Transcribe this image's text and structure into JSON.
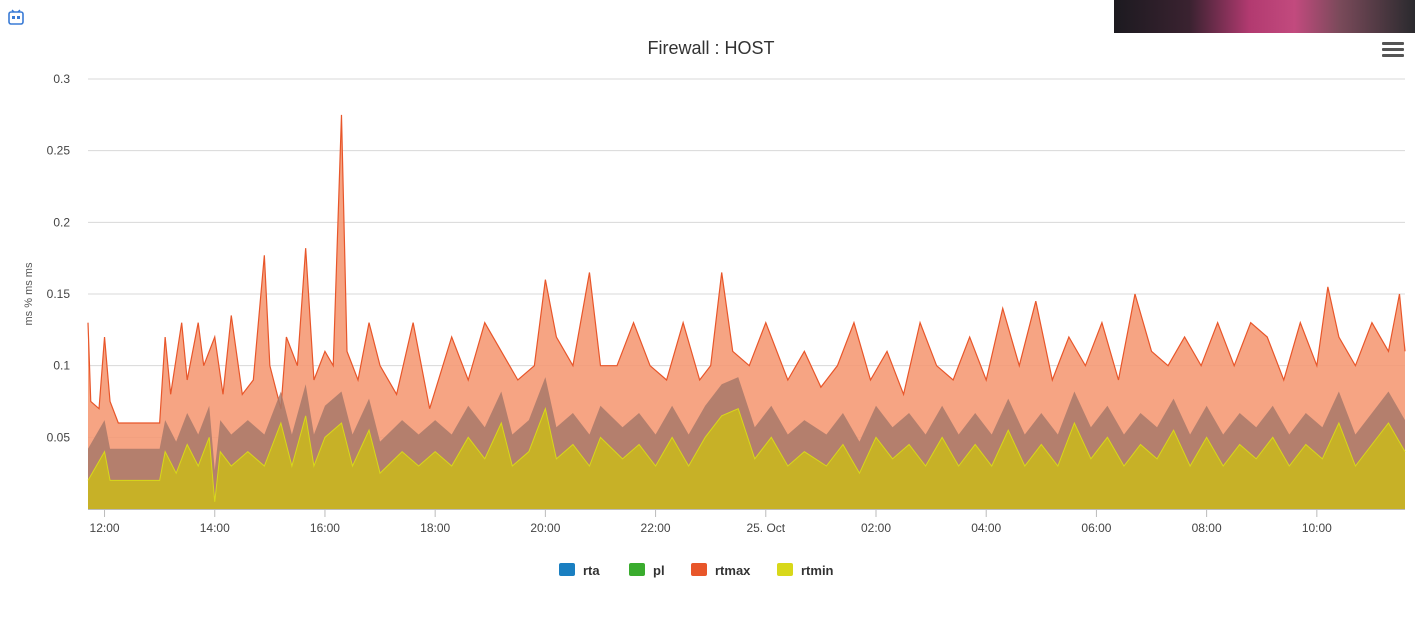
{
  "chart_data": {
    "type": "area",
    "title": "Firewall : HOST",
    "ylabel": "ms % ms ms",
    "xlabel": "",
    "ylim": [
      0,
      0.3
    ],
    "yticks": [
      0.05,
      0.1,
      0.15,
      0.2,
      0.25,
      0.3
    ],
    "ytick_labels": [
      "0.05",
      "0.1",
      "0.15",
      "0.2",
      "0.25",
      "0.3"
    ],
    "xlim": [
      11.7,
      35.6
    ],
    "xticks": [
      12,
      14,
      16,
      18,
      20,
      22,
      24,
      26,
      28,
      30,
      32,
      34
    ],
    "xtick_labels": [
      "12:00",
      "14:00",
      "16:00",
      "18:00",
      "20:00",
      "22:00",
      "25. Oct",
      "02:00",
      "04:00",
      "06:00",
      "08:00",
      "10:00"
    ],
    "legend_position": "bottom-center",
    "grid": true,
    "series": [
      {
        "name": "rta",
        "color": "#1f77b4",
        "values": []
      },
      {
        "name": "pl",
        "color": "#2ca02c",
        "values": []
      },
      {
        "name": "rtmax",
        "color": "#e8562a",
        "points": [
          [
            11.7,
            0.13
          ],
          [
            11.75,
            0.075
          ],
          [
            11.9,
            0.07
          ],
          [
            12.0,
            0.12
          ],
          [
            12.1,
            0.075
          ],
          [
            12.25,
            0.06
          ],
          [
            13.0,
            0.06
          ],
          [
            13.1,
            0.12
          ],
          [
            13.2,
            0.08
          ],
          [
            13.4,
            0.13
          ],
          [
            13.5,
            0.09
          ],
          [
            13.7,
            0.13
          ],
          [
            13.8,
            0.1
          ],
          [
            14.0,
            0.12
          ],
          [
            14.15,
            0.08
          ],
          [
            14.3,
            0.135
          ],
          [
            14.5,
            0.08
          ],
          [
            14.7,
            0.09
          ],
          [
            14.9,
            0.177
          ],
          [
            15.0,
            0.1
          ],
          [
            15.2,
            0.07
          ],
          [
            15.3,
            0.12
          ],
          [
            15.5,
            0.1
          ],
          [
            15.65,
            0.182
          ],
          [
            15.8,
            0.09
          ],
          [
            16.0,
            0.11
          ],
          [
            16.15,
            0.1
          ],
          [
            16.3,
            0.275
          ],
          [
            16.4,
            0.11
          ],
          [
            16.6,
            0.09
          ],
          [
            16.8,
            0.13
          ],
          [
            17.0,
            0.1
          ],
          [
            17.3,
            0.08
          ],
          [
            17.6,
            0.13
          ],
          [
            17.9,
            0.07
          ],
          [
            18.3,
            0.12
          ],
          [
            18.6,
            0.09
          ],
          [
            18.9,
            0.13
          ],
          [
            19.2,
            0.11
          ],
          [
            19.5,
            0.09
          ],
          [
            19.8,
            0.1
          ],
          [
            20.0,
            0.16
          ],
          [
            20.2,
            0.12
          ],
          [
            20.5,
            0.1
          ],
          [
            20.8,
            0.165
          ],
          [
            21.0,
            0.1
          ],
          [
            21.3,
            0.1
          ],
          [
            21.6,
            0.13
          ],
          [
            21.9,
            0.1
          ],
          [
            22.2,
            0.09
          ],
          [
            22.5,
            0.13
          ],
          [
            22.8,
            0.09
          ],
          [
            23.0,
            0.1
          ],
          [
            23.2,
            0.165
          ],
          [
            23.4,
            0.11
          ],
          [
            23.7,
            0.1
          ],
          [
            24.0,
            0.13
          ],
          [
            24.4,
            0.09
          ],
          [
            24.7,
            0.11
          ],
          [
            25.0,
            0.085
          ],
          [
            25.3,
            0.1
          ],
          [
            25.6,
            0.13
          ],
          [
            25.9,
            0.09
          ],
          [
            26.2,
            0.11
          ],
          [
            26.5,
            0.08
          ],
          [
            26.8,
            0.13
          ],
          [
            27.1,
            0.1
          ],
          [
            27.4,
            0.09
          ],
          [
            27.7,
            0.12
          ],
          [
            28.0,
            0.09
          ],
          [
            28.3,
            0.14
          ],
          [
            28.6,
            0.1
          ],
          [
            28.9,
            0.145
          ],
          [
            29.2,
            0.09
          ],
          [
            29.5,
            0.12
          ],
          [
            29.8,
            0.1
          ],
          [
            30.1,
            0.13
          ],
          [
            30.4,
            0.09
          ],
          [
            30.7,
            0.15
          ],
          [
            31.0,
            0.11
          ],
          [
            31.3,
            0.1
          ],
          [
            31.6,
            0.12
          ],
          [
            31.9,
            0.1
          ],
          [
            32.2,
            0.13
          ],
          [
            32.5,
            0.1
          ],
          [
            32.8,
            0.13
          ],
          [
            33.1,
            0.12
          ],
          [
            33.4,
            0.09
          ],
          [
            33.7,
            0.13
          ],
          [
            34.0,
            0.1
          ],
          [
            34.2,
            0.155
          ],
          [
            34.4,
            0.12
          ],
          [
            34.7,
            0.1
          ],
          [
            35.0,
            0.13
          ],
          [
            35.3,
            0.11
          ],
          [
            35.5,
            0.15
          ],
          [
            35.6,
            0.11
          ]
        ]
      },
      {
        "name": "rtmin",
        "color": "#d8d81a",
        "points": [
          [
            11.7,
            0.02
          ],
          [
            12.0,
            0.04
          ],
          [
            12.1,
            0.02
          ],
          [
            13.0,
            0.02
          ],
          [
            13.1,
            0.04
          ],
          [
            13.3,
            0.025
          ],
          [
            13.5,
            0.045
          ],
          [
            13.7,
            0.03
          ],
          [
            13.9,
            0.05
          ],
          [
            14.0,
            0.005
          ],
          [
            14.1,
            0.04
          ],
          [
            14.3,
            0.03
          ],
          [
            14.6,
            0.04
          ],
          [
            14.9,
            0.03
          ],
          [
            15.2,
            0.06
          ],
          [
            15.4,
            0.03
          ],
          [
            15.65,
            0.065
          ],
          [
            15.8,
            0.03
          ],
          [
            16.0,
            0.05
          ],
          [
            16.3,
            0.06
          ],
          [
            16.5,
            0.03
          ],
          [
            16.8,
            0.055
          ],
          [
            17.0,
            0.025
          ],
          [
            17.4,
            0.04
          ],
          [
            17.7,
            0.03
          ],
          [
            18.0,
            0.04
          ],
          [
            18.3,
            0.03
          ],
          [
            18.6,
            0.05
          ],
          [
            18.9,
            0.035
          ],
          [
            19.2,
            0.06
          ],
          [
            19.4,
            0.03
          ],
          [
            19.7,
            0.04
          ],
          [
            20.0,
            0.07
          ],
          [
            20.2,
            0.035
          ],
          [
            20.5,
            0.045
          ],
          [
            20.8,
            0.03
          ],
          [
            21.0,
            0.05
          ],
          [
            21.4,
            0.035
          ],
          [
            21.7,
            0.045
          ],
          [
            22.0,
            0.03
          ],
          [
            22.3,
            0.05
          ],
          [
            22.6,
            0.03
          ],
          [
            22.9,
            0.05
          ],
          [
            23.2,
            0.065
          ],
          [
            23.5,
            0.07
          ],
          [
            23.8,
            0.035
          ],
          [
            24.1,
            0.05
          ],
          [
            24.4,
            0.03
          ],
          [
            24.7,
            0.04
          ],
          [
            25.1,
            0.03
          ],
          [
            25.4,
            0.045
          ],
          [
            25.7,
            0.025
          ],
          [
            26.0,
            0.05
          ],
          [
            26.3,
            0.035
          ],
          [
            26.6,
            0.045
          ],
          [
            26.9,
            0.03
          ],
          [
            27.2,
            0.05
          ],
          [
            27.5,
            0.03
          ],
          [
            27.8,
            0.045
          ],
          [
            28.1,
            0.03
          ],
          [
            28.4,
            0.055
          ],
          [
            28.7,
            0.03
          ],
          [
            29.0,
            0.045
          ],
          [
            29.3,
            0.03
          ],
          [
            29.6,
            0.06
          ],
          [
            29.9,
            0.035
          ],
          [
            30.2,
            0.05
          ],
          [
            30.5,
            0.03
          ],
          [
            30.8,
            0.045
          ],
          [
            31.1,
            0.035
          ],
          [
            31.4,
            0.055
          ],
          [
            31.7,
            0.03
          ],
          [
            32.0,
            0.05
          ],
          [
            32.3,
            0.03
          ],
          [
            32.6,
            0.045
          ],
          [
            32.9,
            0.035
          ],
          [
            33.2,
            0.05
          ],
          [
            33.5,
            0.03
          ],
          [
            33.8,
            0.045
          ],
          [
            34.1,
            0.035
          ],
          [
            34.4,
            0.06
          ],
          [
            34.7,
            0.03
          ],
          [
            35.0,
            0.045
          ],
          [
            35.3,
            0.06
          ],
          [
            35.6,
            0.04
          ]
        ]
      }
    ]
  },
  "legend": [
    {
      "label": "rta",
      "color": "#1a7fc1"
    },
    {
      "label": "pl",
      "color": "#3aac2e"
    },
    {
      "label": "rtmax",
      "color": "#e8562a"
    },
    {
      "label": "rtmin",
      "color": "#d8d81a"
    }
  ],
  "colors": {
    "rtmax_fill": "#f59a76",
    "rtmax_line": "#e8562a",
    "rta_fill": "#a8796a",
    "rtmin_fill": "#c8b424",
    "rtmin_line": "#d8d81a",
    "grid": "#d8d8d8",
    "axis_text": "#444444"
  },
  "icons": {
    "corner": "app-logo-icon",
    "menu": "hamburger-menu-icon"
  }
}
